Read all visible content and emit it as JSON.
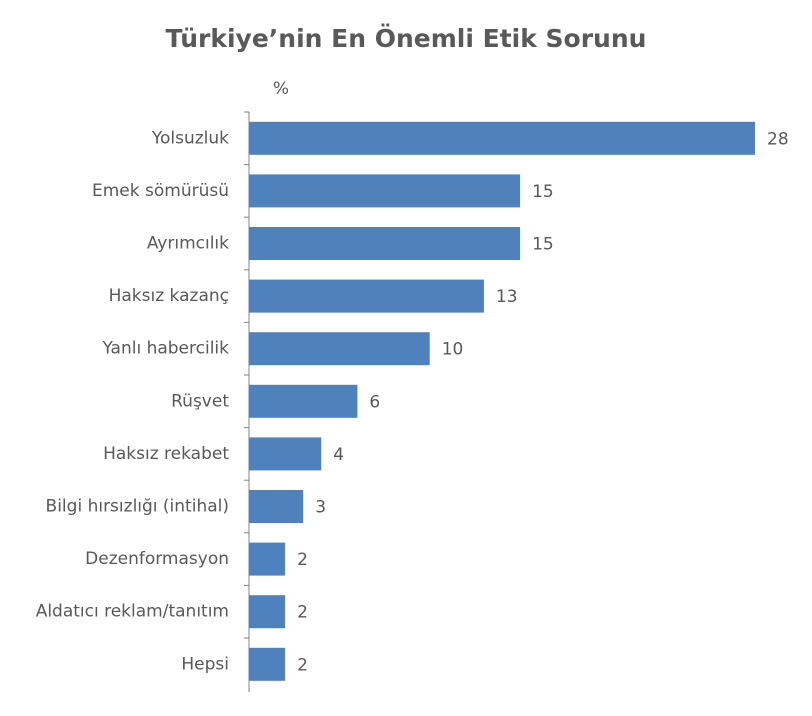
{
  "chart_data": {
    "type": "bar",
    "orientation": "horizontal",
    "title": "Türkiye’nin En Önemli Etik Sorunu",
    "value_axis_label": "%",
    "categories": [
      "Yolsuzluk",
      "Emek sömürüsü",
      "Ayrımcılık",
      "Haksız kazanç",
      "Yanlı habercilik",
      "Rüşvet",
      "Haksız rekabet",
      "Bilgi hırsızlığı (intihal)",
      "Dezenformasyon",
      "Aldatıcı reklam/tanıtım",
      "Hepsi"
    ],
    "values": [
      28,
      15,
      15,
      13,
      10,
      6,
      4,
      3,
      2,
      2,
      2
    ],
    "color": "#4f81bd"
  }
}
